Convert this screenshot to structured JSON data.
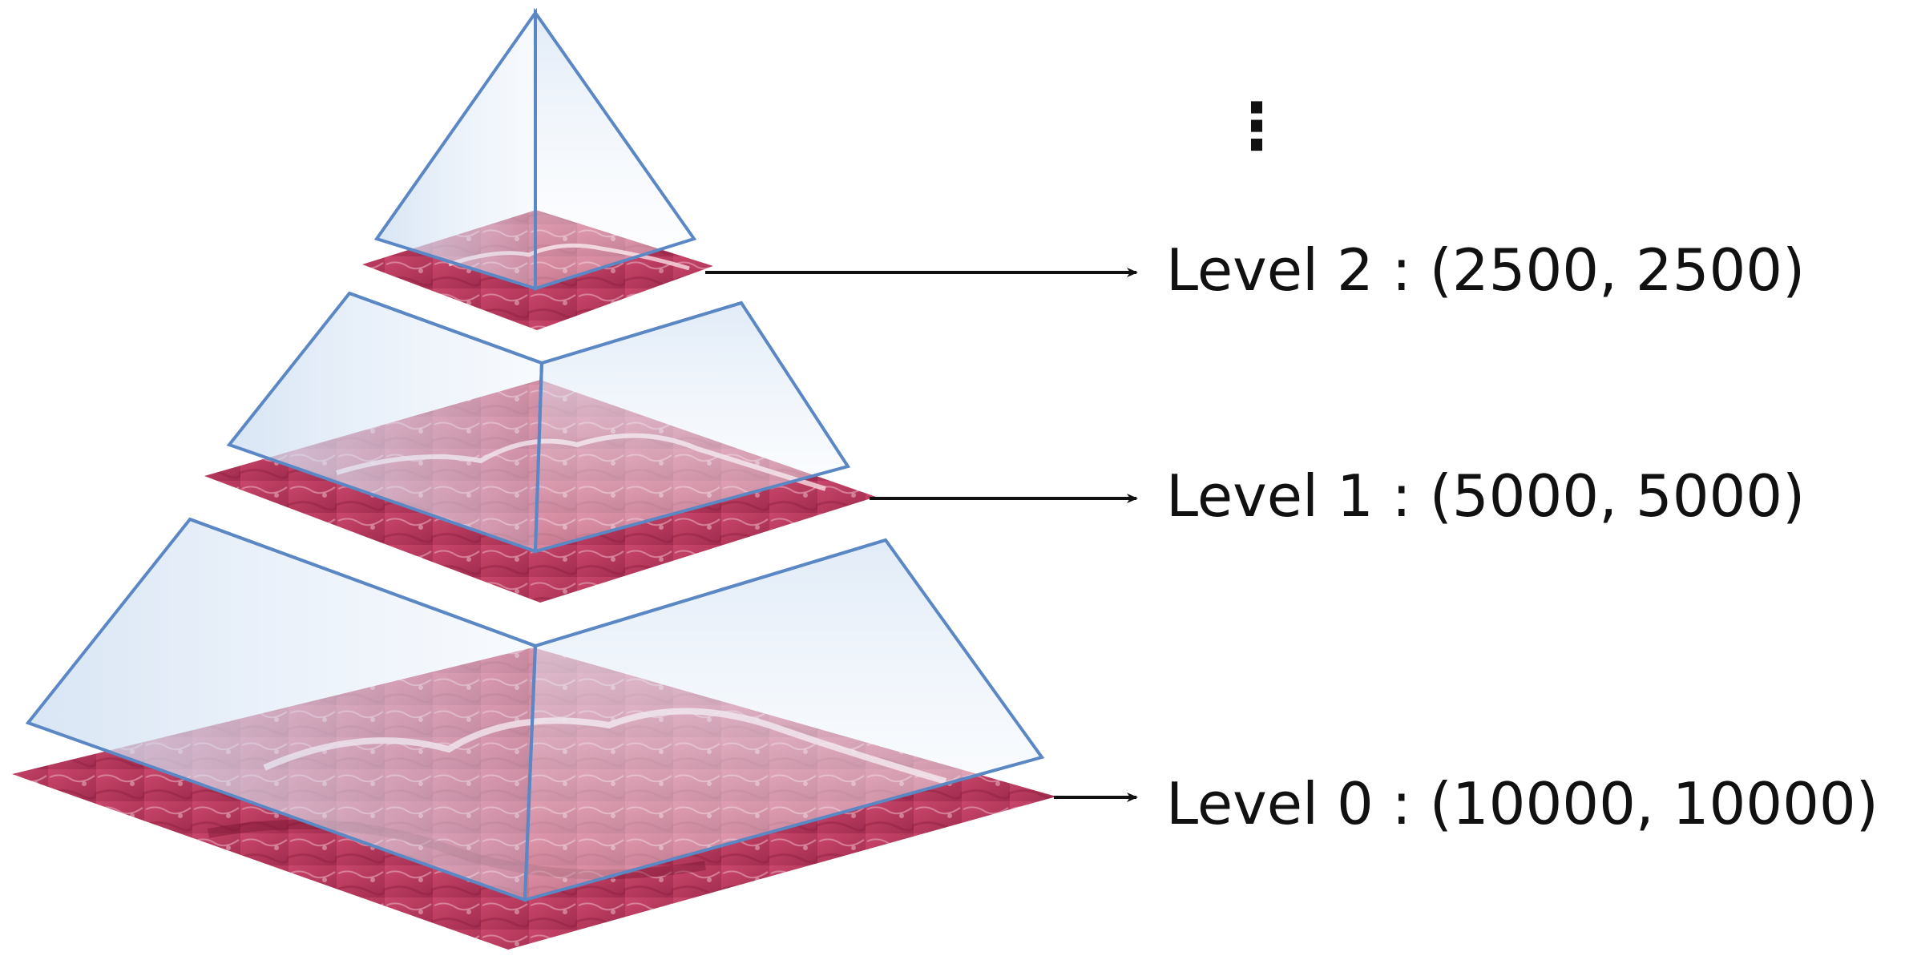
{
  "diagram": {
    "ellipsis": "⋮",
    "levels": [
      {
        "id": "level-2",
        "label": "Level 2 : (2500, 2500)"
      },
      {
        "id": "level-1",
        "label": "Level 1 : (5000, 5000)"
      },
      {
        "id": "level-0",
        "label": "Level 0 : (10000, 10000)"
      }
    ]
  },
  "colors": {
    "tissue": "#b83b5e",
    "tissue_dark": "#8e1f3f",
    "tissue_light": "#e9b7c6",
    "frustum_edge": "#5b87c4",
    "frustum_fill": "#d6e3f3",
    "arrow": "#111111"
  }
}
